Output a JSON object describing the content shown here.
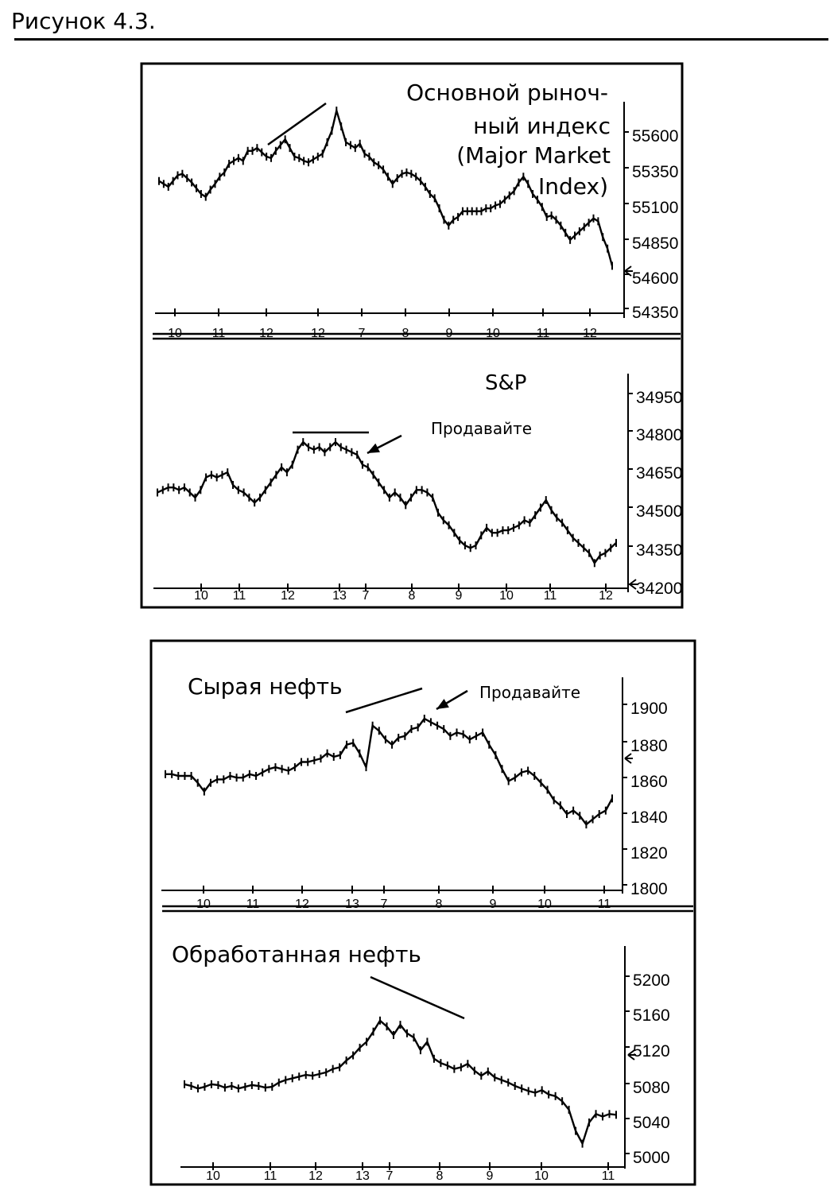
{
  "figure_title": "Рисунок 4.3.",
  "chart_data": [
    {
      "type": "line",
      "title_lines": [
        "Основной рыноч-",
        "ный индекс",
        "(Major Market",
        "Index)"
      ],
      "y_ticks": [
        55600,
        55350,
        55100,
        54850,
        54600,
        54350
      ],
      "x_ticks": [
        "10",
        "11",
        "12",
        "12",
        "7",
        "8",
        "9",
        "10",
        "11",
        "12"
      ],
      "ylim": [
        54350,
        55700
      ],
      "series": [
        {
          "values": [
            55270,
            55250,
            55230,
            55270,
            55310,
            55320,
            55290,
            55260,
            55220,
            55180,
            55160,
            55210,
            55250,
            55300,
            55330,
            55390,
            55410,
            55430,
            55410,
            55480,
            55480,
            55500,
            55470,
            55440,
            55430,
            55480,
            55520,
            55560,
            55500,
            55440,
            55430,
            55410,
            55400,
            55420,
            55440,
            55460,
            55540,
            55620,
            55760,
            55650,
            55540,
            55520,
            55500,
            55530,
            55460,
            55440,
            55400,
            55380,
            55350,
            55300,
            55250,
            55290,
            55320,
            55330,
            55320,
            55300,
            55270,
            55230,
            55180,
            55150,
            55080,
            55000,
            54960,
            55000,
            55020,
            55060,
            55060,
            55060,
            55060,
            55060,
            55080,
            55080,
            55100,
            55110,
            55140,
            55170,
            55200,
            55260,
            55300,
            55250,
            55180,
            55140,
            55090,
            55020,
            55030,
            55000,
            54960,
            54910,
            54860,
            54890,
            54920,
            54950,
            54980,
            55010,
            54990,
            54880,
            54800,
            54680
          ]
        }
      ]
    },
    {
      "type": "line",
      "title": "S&P",
      "annotation": "Продавайте",
      "y_ticks": [
        34950,
        34800,
        34650,
        34500,
        34350,
        34200
      ],
      "x_ticks": [
        "10",
        "11",
        "12",
        "13",
        "7",
        "8",
        "9",
        "10",
        "11",
        "12"
      ],
      "ylim": [
        34200,
        35020
      ],
      "series": [
        {
          "values": [
            34580,
            34590,
            34600,
            34600,
            34590,
            34600,
            34580,
            34560,
            34590,
            34640,
            34650,
            34640,
            34650,
            34660,
            34610,
            34590,
            34580,
            34560,
            34540,
            34560,
            34590,
            34620,
            34650,
            34680,
            34660,
            34690,
            34750,
            34780,
            34760,
            34750,
            34760,
            34740,
            34760,
            34780,
            34760,
            34750,
            34740,
            34730,
            34690,
            34680,
            34650,
            34620,
            34590,
            34560,
            34580,
            34560,
            34530,
            34560,
            34590,
            34590,
            34580,
            34560,
            34500,
            34470,
            34450,
            34420,
            34390,
            34370,
            34360,
            34370,
            34410,
            34440,
            34420,
            34420,
            34430,
            34430,
            34440,
            34450,
            34470,
            34460,
            34490,
            34520,
            34550,
            34510,
            34480,
            34460,
            34430,
            34400,
            34380,
            34360,
            34340,
            34300,
            34330,
            34340,
            34360,
            34380
          ]
        }
      ]
    },
    {
      "type": "line",
      "title": "Сырая нефть",
      "annotation": "Продавайте",
      "y_ticks": [
        1900,
        1880,
        1860,
        1840,
        1820,
        1800
      ],
      "x_ticks": [
        "10",
        "11",
        "12",
        "13",
        "7",
        "8",
        "9",
        "10",
        "11"
      ],
      "ylim": [
        1800,
        1910
      ],
      "series": [
        {
          "values": [
            1867,
            1867,
            1866,
            1866,
            1866,
            1862,
            1857,
            1862,
            1864,
            1864,
            1866,
            1865,
            1865,
            1867,
            1866,
            1868,
            1870,
            1871,
            1870,
            1869,
            1871,
            1874,
            1874,
            1875,
            1876,
            1879,
            1877,
            1878,
            1884,
            1885,
            1879,
            1871,
            1895,
            1892,
            1887,
            1884,
            1888,
            1889,
            1893,
            1894,
            1899,
            1897,
            1895,
            1893,
            1889,
            1891,
            1890,
            1887,
            1889,
            1891,
            1884,
            1878,
            1870,
            1863,
            1865,
            1868,
            1869,
            1866,
            1862,
            1858,
            1852,
            1849,
            1844,
            1846,
            1843,
            1838,
            1841,
            1844,
            1846,
            1853
          ]
        }
      ]
    },
    {
      "type": "line",
      "title": "Обработанная нефть",
      "y_ticks": [
        5200,
        5160,
        5120,
        5080,
        5040,
        5000
      ],
      "x_ticks": [
        "10",
        "11",
        "12",
        "13",
        "7",
        "8",
        "9",
        "10",
        "11"
      ],
      "ylim": [
        5000,
        5220
      ],
      "series": [
        {
          "values": [
            5090,
            5088,
            5085,
            5087,
            5090,
            5089,
            5086,
            5088,
            5085,
            5087,
            5089,
            5088,
            5086,
            5087,
            5092,
            5095,
            5097,
            5099,
            5101,
            5100,
            5102,
            5104,
            5108,
            5110,
            5118,
            5124,
            5133,
            5140,
            5152,
            5165,
            5158,
            5148,
            5160,
            5150,
            5145,
            5130,
            5140,
            5120,
            5115,
            5112,
            5108,
            5110,
            5114,
            5106,
            5100,
            5105,
            5098,
            5095,
            5092,
            5088,
            5085,
            5082,
            5080,
            5083,
            5078,
            5076,
            5070,
            5060,
            5035,
            5020,
            5045,
            5055,
            5052,
            5055,
            5054
          ]
        }
      ]
    }
  ]
}
